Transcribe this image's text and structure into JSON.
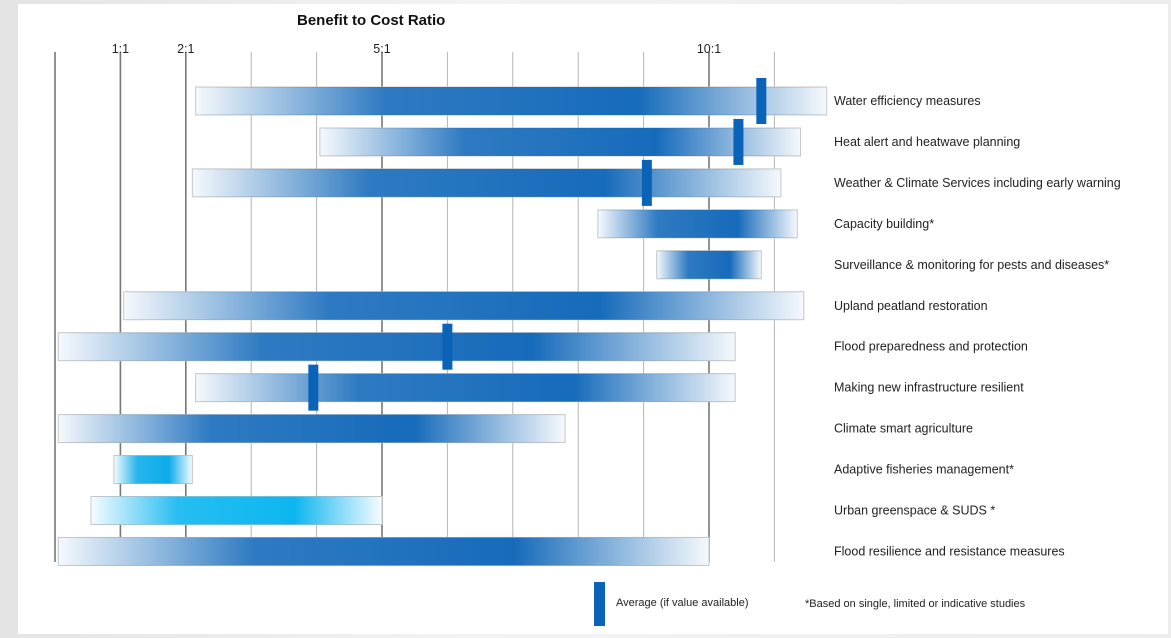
{
  "chart_data": {
    "type": "range-bar",
    "title": "Benefit to Cost Ratio",
    "x_ticks": [
      {
        "label": "1:1",
        "value": 1
      },
      {
        "label": "2:1",
        "value": 2
      },
      {
        "label": "5:1",
        "value": 5
      },
      {
        "label": "10:1",
        "value": 10
      }
    ],
    "xlim": [
      0,
      11.5
    ],
    "grid": true,
    "rows": [
      {
        "label": "Water efficiency measures",
        "low": 2.15,
        "high": 11.8,
        "avg": 10.8,
        "color": "#0a63b7"
      },
      {
        "label": "Heat alert and heatwave planning",
        "low": 4.05,
        "high": 11.4,
        "avg": 10.45,
        "color": "#0a63b7"
      },
      {
        "label": "Weather & Climate Services including  early warning",
        "low": 2.1,
        "high": 11.1,
        "avg": 9.05,
        "color": "#0a63b7"
      },
      {
        "label": "Capacity building*",
        "low": 8.3,
        "high": 11.35,
        "avg": null,
        "color": "#0a63b7"
      },
      {
        "label": "Surveillance  & monitoring for pests and diseases*",
        "low": 9.2,
        "high": 10.8,
        "avg": null,
        "color": "#0a63b7"
      },
      {
        "label": "Upland peatland restoration",
        "low": 1.05,
        "high": 11.45,
        "avg": null,
        "color": "#0a63b7"
      },
      {
        "label": "Flood preparedness and protection",
        "low": 0.05,
        "high": 10.4,
        "avg": 6.0,
        "color": "#0a63b7"
      },
      {
        "label": "Making new infrastructure resilient",
        "low": 2.15,
        "high": 10.4,
        "avg": 3.95,
        "color": "#0a63b7"
      },
      {
        "label": "Climate smart agriculture",
        "low": 0.05,
        "high": 7.8,
        "avg": null,
        "color": "#0a63b7"
      },
      {
        "label": "Adaptive fisheries management*",
        "low": 0.9,
        "high": 2.1,
        "avg": null,
        "color": "#00a7e8"
      },
      {
        "label": "Urban greenspace & SUDS *",
        "low": 0.55,
        "high": 5.0,
        "avg": null,
        "color": "#00b2ef"
      },
      {
        "label": "Flood resilience and resistance measures",
        "low": 0.05,
        "high": 10.0,
        "avg": null,
        "color": "#0a63b7"
      }
    ]
  },
  "legend": {
    "average_label": "Average (if value available)",
    "footnote": "*Based on single, limited or indicative studies",
    "average_color": "#0a63b7"
  }
}
